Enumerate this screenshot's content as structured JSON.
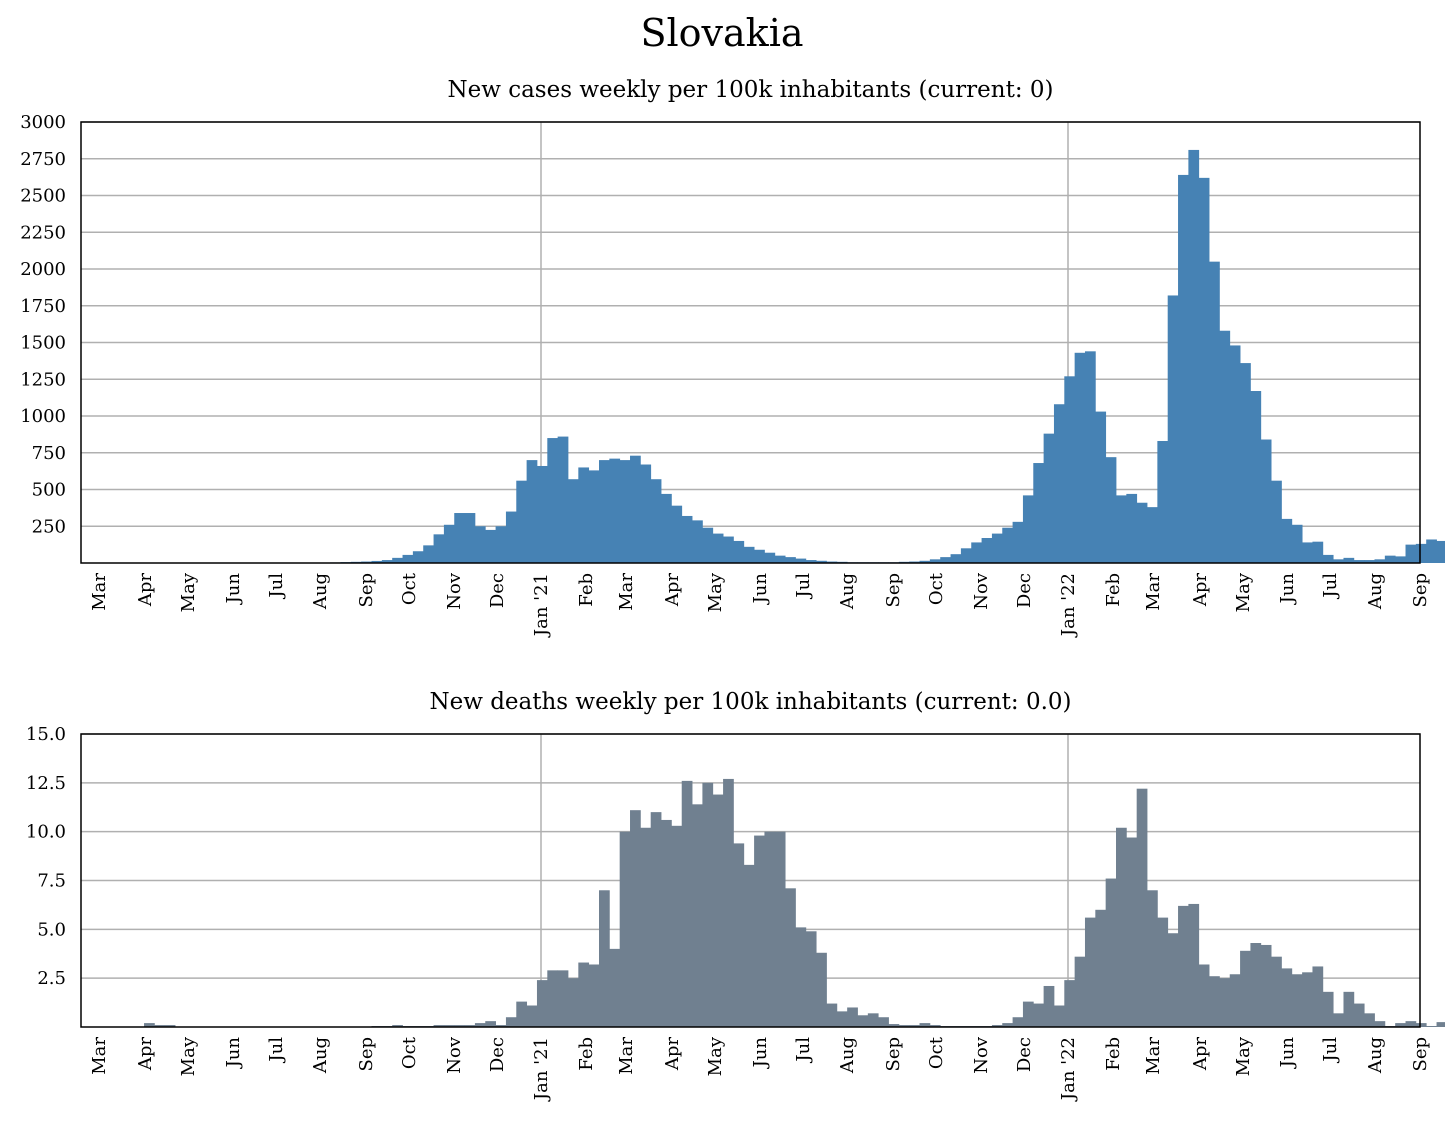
{
  "title": "Slovakia",
  "x_tick_labels": [
    "Mar",
    "Apr",
    "May",
    "Jun",
    "Jul",
    "Aug",
    "Sep",
    "Oct",
    "Nov",
    "Dec",
    "Jan '21",
    "Feb",
    "Mar",
    "Apr",
    "May",
    "Jun",
    "Jul",
    "Aug",
    "Sep",
    "Oct",
    "Nov",
    "Dec",
    "Jan '22",
    "Feb",
    "Mar",
    "Apr",
    "May",
    "Jun",
    "Jul",
    "Aug",
    "Sep"
  ],
  "chart_data": [
    {
      "type": "bar",
      "title": "New cases weekly per 100k inhabitants (current: 0)",
      "color": "#4682b4",
      "ylim": [
        0,
        3000
      ],
      "yticks": [
        250,
        500,
        750,
        1000,
        1250,
        1500,
        1750,
        2000,
        2250,
        2500,
        2750,
        3000
      ],
      "grid": true,
      "values": [
        0,
        0,
        1,
        1,
        1,
        1,
        1,
        1,
        1,
        1,
        1,
        1,
        1,
        1,
        1,
        1,
        1,
        1,
        1,
        2,
        2,
        2,
        3,
        3,
        4,
        6,
        8,
        10,
        14,
        20,
        35,
        55,
        80,
        120,
        195,
        260,
        340,
        340,
        250,
        225,
        250,
        350,
        560,
        700,
        660,
        850,
        860,
        570,
        650,
        630,
        700,
        710,
        700,
        730,
        670,
        570,
        470,
        390,
        320,
        290,
        240,
        200,
        180,
        150,
        110,
        90,
        70,
        50,
        40,
        30,
        20,
        15,
        10,
        8,
        5,
        5,
        5,
        5,
        5,
        8,
        10,
        15,
        25,
        40,
        60,
        100,
        140,
        170,
        200,
        240,
        280,
        460,
        680,
        880,
        1080,
        1270,
        1430,
        1440,
        1030,
        720,
        460,
        470,
        410,
        380,
        830,
        1820,
        2640,
        2810,
        2620,
        2050,
        1580,
        1480,
        1360,
        1170,
        840,
        560,
        300,
        260,
        140,
        145,
        55,
        25,
        35,
        20,
        20,
        25,
        50,
        45,
        125,
        130,
        160,
        150
      ]
    },
    {
      "type": "bar",
      "title": "New deaths weekly per 100k inhabitants (current: 0.0)",
      "color": "#708090",
      "ylim": [
        0,
        15
      ],
      "yticks": [
        2.5,
        5.0,
        7.5,
        10.0,
        12.5,
        15.0
      ],
      "grid": true,
      "values": [
        0,
        0,
        0,
        0,
        0,
        0,
        0.2,
        0.1,
        0.1,
        0,
        0,
        0,
        0,
        0,
        0,
        0,
        0,
        0,
        0,
        0,
        0,
        0,
        0,
        0,
        0,
        0,
        0,
        0,
        0.05,
        0.05,
        0.1,
        0.05,
        0.05,
        0.05,
        0.1,
        0.1,
        0.1,
        0.1,
        0.2,
        0.3,
        0.1,
        0.5,
        1.3,
        1.1,
        2.4,
        2.9,
        2.9,
        2.5,
        3.3,
        3.2,
        7.0,
        4.0,
        10.0,
        11.1,
        10.2,
        11.0,
        10.6,
        10.3,
        12.6,
        11.4,
        12.5,
        11.9,
        12.7,
        9.4,
        8.3,
        9.8,
        10.0,
        10.0,
        7.1,
        5.1,
        4.9,
        3.8,
        1.2,
        0.8,
        1.0,
        0.6,
        0.7,
        0.5,
        0.15,
        0.1,
        0.1,
        0.2,
        0.1,
        0.05,
        0.05,
        0.05,
        0.05,
        0.05,
        0.1,
        0.2,
        0.5,
        1.3,
        1.2,
        2.1,
        1.1,
        2.4,
        3.6,
        5.6,
        6.0,
        7.6,
        10.2,
        9.7,
        12.2,
        7.0,
        5.6,
        4.8,
        6.2,
        6.3,
        3.2,
        2.6,
        2.5,
        2.7,
        3.9,
        4.3,
        4.2,
        3.6,
        3.0,
        2.7,
        2.8,
        3.1,
        1.8,
        0.7,
        1.8,
        1.2,
        0.7,
        0.3,
        0.05,
        0.2,
        0.3,
        0.2,
        0.05,
        0.25,
        0.2,
        0.45,
        0.45,
        0.2
      ]
    }
  ]
}
